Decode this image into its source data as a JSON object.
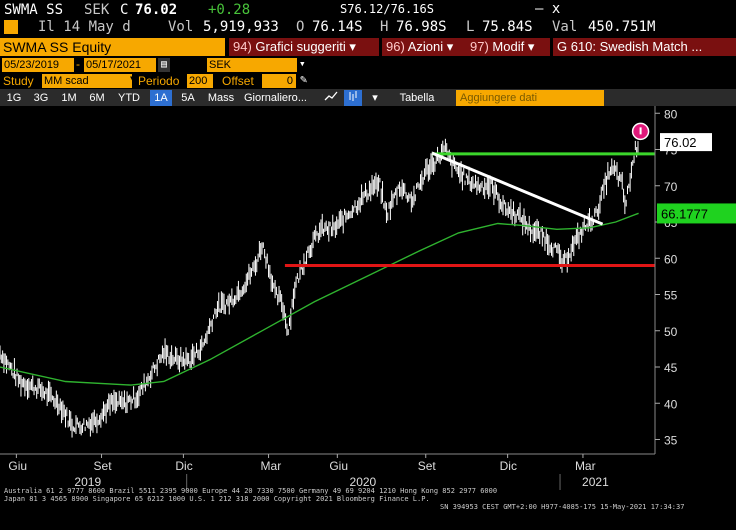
{
  "ticker": {
    "symbol": "SWMA SS",
    "currency": "SEK",
    "close_flag": "C",
    "last": "76.02",
    "change": "+0.28",
    "date_label": "Il 14 May d",
    "vol_label": "Vol",
    "vol": "5,919,933",
    "open_label": "O",
    "open": "76.14S",
    "bid_ask": "S76.12/76.16S",
    "high_label": "H",
    "high": "76.98S",
    "low_label": "L",
    "low": "75.84S",
    "val_label": "Val",
    "val": "450.751M",
    "close_x": "– x"
  },
  "header": {
    "title": "SWMA SS Equity",
    "menus": [
      {
        "num": "94)",
        "label": "Grafici suggeriti"
      },
      {
        "num": "96)",
        "label": "Azioni"
      },
      {
        "num": "97)",
        "label": "Modif"
      },
      {
        "num": "",
        "label": "G 610: Swedish Match ..."
      }
    ]
  },
  "controls": {
    "start_date": "05/23/2019",
    "end_date": "05/17/2021",
    "currency": "SEK",
    "study_label": "Study",
    "study_value": "MM scad",
    "period_label": "Periodo",
    "period_value": "200",
    "offset_label": "Offset",
    "offset_value": "0"
  },
  "toolbar": {
    "ranges": [
      "1G",
      "3G",
      "1M",
      "6M",
      "YTD",
      "1A",
      "5A",
      "Mass"
    ],
    "active_range": "1A",
    "granularity": "Giornaliero",
    "table": "Tabella",
    "add_data": "Aggiungere dati"
  },
  "chart_data": {
    "type": "bar",
    "ylim": [
      33,
      81
    ],
    "y_ticks": [
      35,
      40,
      45,
      50,
      55,
      60,
      65,
      70,
      75,
      80
    ],
    "x_ticks": [
      "Giu",
      "Set",
      "Dic",
      "Mar",
      "Giu",
      "Set",
      "Dic",
      "Mar"
    ],
    "x_years": [
      "2019",
      "2020",
      "2021"
    ],
    "last_price_label": "76.02",
    "ma_label": "66.1777",
    "colors": {
      "price": "#ffffff",
      "ma": "#2fb32f",
      "support": "#e01515",
      "resistance": "#3bd62b",
      "trend": "#ffffff"
    },
    "price_path": [
      [
        0,
        47
      ],
      [
        3,
        43
      ],
      [
        6,
        42
      ],
      [
        9,
        40
      ],
      [
        11,
        37
      ],
      [
        13,
        37
      ],
      [
        15,
        38
      ],
      [
        17,
        40
      ],
      [
        19,
        40
      ],
      [
        21,
        41
      ],
      [
        23,
        44
      ],
      [
        25,
        47
      ],
      [
        27,
        46
      ],
      [
        29,
        46
      ],
      [
        31,
        48
      ],
      [
        33,
        53
      ],
      [
        35,
        54
      ],
      [
        37,
        56
      ],
      [
        39,
        59
      ],
      [
        40,
        62
      ],
      [
        41,
        59
      ],
      [
        42,
        55
      ],
      [
        43,
        54
      ],
      [
        44,
        50
      ],
      [
        45,
        56
      ],
      [
        47,
        61
      ],
      [
        49,
        64
      ],
      [
        51,
        64
      ],
      [
        53,
        66
      ],
      [
        55,
        68
      ],
      [
        57,
        70
      ],
      [
        58,
        70
      ],
      [
        59,
        66
      ],
      [
        61,
        70
      ],
      [
        63,
        68
      ],
      [
        65,
        72
      ],
      [
        67,
        74
      ],
      [
        68,
        75
      ],
      [
        69,
        73
      ],
      [
        71,
        71
      ],
      [
        73,
        70
      ],
      [
        75,
        70
      ],
      [
        77,
        67
      ],
      [
        79,
        66
      ],
      [
        81,
        64
      ],
      [
        83,
        63
      ],
      [
        85,
        61
      ],
      [
        86,
        59
      ],
      [
        87,
        61
      ],
      [
        89,
        64
      ],
      [
        91,
        66
      ],
      [
        92,
        69
      ],
      [
        93,
        72
      ],
      [
        94,
        72
      ],
      [
        95,
        70
      ],
      [
        95.5,
        67
      ],
      [
        96,
        70
      ],
      [
        97,
        75
      ],
      [
        97.5,
        76
      ]
    ],
    "ma_path": [
      [
        0,
        45
      ],
      [
        10,
        43
      ],
      [
        20,
        42.5
      ],
      [
        25,
        43
      ],
      [
        32,
        46
      ],
      [
        40,
        50
      ],
      [
        48,
        54
      ],
      [
        56,
        57.5
      ],
      [
        64,
        61
      ],
      [
        70,
        63.5
      ],
      [
        76,
        64.8
      ],
      [
        80,
        64.5
      ],
      [
        85,
        64
      ],
      [
        90,
        64.2
      ],
      [
        94,
        65
      ],
      [
        97.5,
        66.2
      ]
    ],
    "support": {
      "from": 43.5,
      "to": 100,
      "y": 59
    },
    "resistance": {
      "from": 66,
      "to": 100,
      "y": 74.4
    },
    "trendline": {
      "x1": 66,
      "y1": 74.5,
      "x2": 92,
      "y2": 64.7
    }
  },
  "footer": {
    "line1": "Australia 61 2 9777 8600 Brazil 5511 2395 9000 Europe 44 20 7330 7500 Germany 49 69 9204 1210 Hong Kong 852 2977 6000",
    "line2": "Japan 81 3 4565 8900     Singapore 65 6212 1000     U.S. 1 212 318 2000     Copyright 2021 Bloomberg Finance L.P.",
    "line3": "SN 394953 CEST GMT+2:00 H977-4085-175 15-May-2021 17:34:37"
  }
}
